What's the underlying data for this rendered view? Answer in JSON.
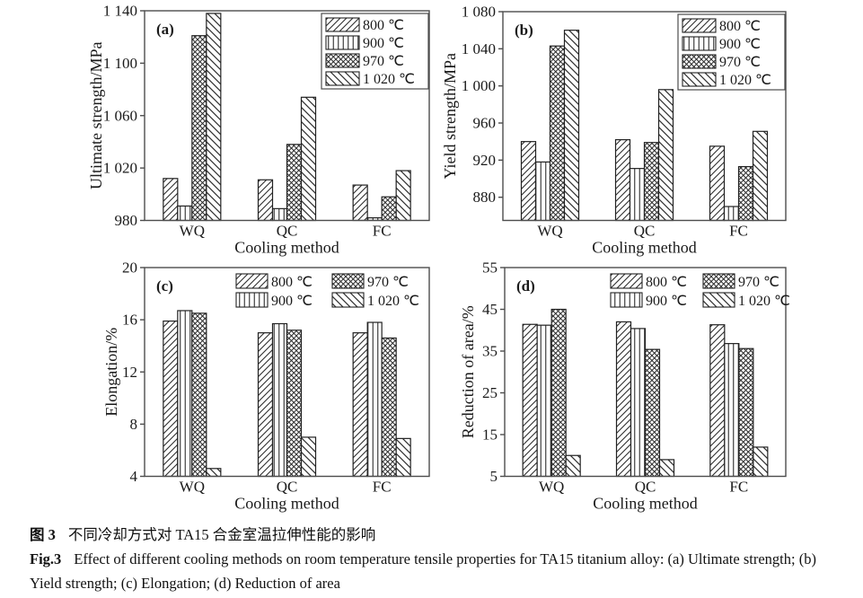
{
  "figure_title": "Fig.3 tensile properties of TA15 titanium alloy",
  "colors": {
    "background": "#ffffff",
    "ink": "#1a1a1a",
    "axis": "#4d4d4d",
    "bar_outline": "#222222",
    "hatch": "#2e2e2e"
  },
  "caption": {
    "zh": {
      "label": "图 3",
      "text": "不同冷却方式对 TA15 合金室温拉伸性能的影响"
    },
    "en": {
      "label": "Fig.3",
      "text": "Effect of different cooling methods on room temperature tensile properties for TA15 titanium alloy: (a) Ultimate strength; (b) Yield strength; (c) Elongation; (d) Reduction of area"
    }
  },
  "chart_data": [
    {
      "type": "bar",
      "panel": "(a)",
      "title": "",
      "xlabel": "Cooling method",
      "ylabel": "Ultimate strength/MPa",
      "categories": [
        "WQ",
        "QC",
        "FC"
      ],
      "ylim": [
        980,
        1140
      ],
      "grid": false,
      "yticks": [
        {
          "v": 980,
          "label": "980"
        },
        {
          "v": 1020,
          "label": "1 020"
        },
        {
          "v": 1060,
          "label": "1 060"
        },
        {
          "v": 1100,
          "label": "1 100"
        },
        {
          "v": 1140,
          "label": "1 140"
        }
      ],
      "legend": {
        "style": "boxed",
        "position": "top-right"
      },
      "series": [
        {
          "name": "800 ℃",
          "pattern": "diag-forward",
          "values": [
            1012,
            1011,
            1007
          ]
        },
        {
          "name": "900 ℃",
          "pattern": "vertical",
          "values": [
            991,
            989,
            982
          ]
        },
        {
          "name": "970 ℃",
          "pattern": "crosshatch",
          "values": [
            1121,
            1038,
            998
          ]
        },
        {
          "name": "1 020 ℃",
          "pattern": "diag-back",
          "values": [
            1138,
            1074,
            1018
          ]
        }
      ]
    },
    {
      "type": "bar",
      "panel": "(b)",
      "title": "",
      "xlabel": "Cooling method",
      "ylabel": "Yield strength/MPa",
      "categories": [
        "WQ",
        "QC",
        "FC"
      ],
      "ylim": [
        855,
        1080
      ],
      "grid": false,
      "yticks": [
        {
          "v": 880,
          "label": "880"
        },
        {
          "v": 920,
          "label": "920"
        },
        {
          "v": 960,
          "label": "960"
        },
        {
          "v": 1000,
          "label": "1 000"
        },
        {
          "v": 1040,
          "label": "1 040"
        },
        {
          "v": 1080,
          "label": "1 080"
        }
      ],
      "legend": {
        "style": "boxed",
        "position": "top-right"
      },
      "series": [
        {
          "name": "800 ℃",
          "pattern": "diag-forward",
          "values": [
            940,
            942,
            935
          ]
        },
        {
          "name": "900 ℃",
          "pattern": "vertical",
          "values": [
            918,
            911,
            870
          ]
        },
        {
          "name": "970 ℃",
          "pattern": "crosshatch",
          "values": [
            1043,
            939,
            913
          ]
        },
        {
          "name": "1 020 ℃",
          "pattern": "diag-back",
          "values": [
            1060,
            996,
            951
          ]
        }
      ]
    },
    {
      "type": "bar",
      "panel": "(c)",
      "title": "",
      "xlabel": "Cooling method",
      "ylabel": "Elongation/%",
      "categories": [
        "WQ",
        "QC",
        "FC"
      ],
      "ylim": [
        4,
        20
      ],
      "grid": false,
      "yticks": [
        {
          "v": 4,
          "label": "4"
        },
        {
          "v": 8,
          "label": "8"
        },
        {
          "v": 12,
          "label": "12"
        },
        {
          "v": 16,
          "label": "16"
        },
        {
          "v": 20,
          "label": "20"
        }
      ],
      "legend": {
        "style": "two-column",
        "position": "top-center"
      },
      "series": [
        {
          "name": "800 ℃",
          "pattern": "diag-forward",
          "values": [
            15.9,
            15.0,
            15.0
          ]
        },
        {
          "name": "900 ℃",
          "pattern": "vertical",
          "values": [
            16.7,
            15.7,
            15.8
          ]
        },
        {
          "name": "970 ℃",
          "pattern": "crosshatch",
          "values": [
            16.5,
            15.2,
            14.6
          ]
        },
        {
          "name": "1 020 ℃",
          "pattern": "diag-back",
          "values": [
            4.6,
            7.0,
            6.9
          ]
        }
      ]
    },
    {
      "type": "bar",
      "panel": "(d)",
      "title": "",
      "xlabel": "Cooling method",
      "ylabel": "Reduction of area/%",
      "categories": [
        "WQ",
        "QC",
        "FC"
      ],
      "ylim": [
        5,
        55
      ],
      "grid": false,
      "yticks": [
        {
          "v": 5,
          "label": "5"
        },
        {
          "v": 15,
          "label": "15"
        },
        {
          "v": 25,
          "label": "25"
        },
        {
          "v": 35,
          "label": "35"
        },
        {
          "v": 45,
          "label": "45"
        },
        {
          "v": 55,
          "label": "55"
        }
      ],
      "legend": {
        "style": "two-column",
        "position": "top-center"
      },
      "series": [
        {
          "name": "800 ℃",
          "pattern": "diag-forward",
          "values": [
            41.4,
            42.0,
            41.3
          ]
        },
        {
          "name": "900 ℃",
          "pattern": "vertical",
          "values": [
            41.2,
            40.4,
            36.8
          ]
        },
        {
          "name": "970 ℃",
          "pattern": "crosshatch",
          "values": [
            45.0,
            35.4,
            35.6
          ]
        },
        {
          "name": "1 020 ℃",
          "pattern": "diag-back",
          "values": [
            10.0,
            9.0,
            12.0
          ]
        }
      ]
    }
  ]
}
